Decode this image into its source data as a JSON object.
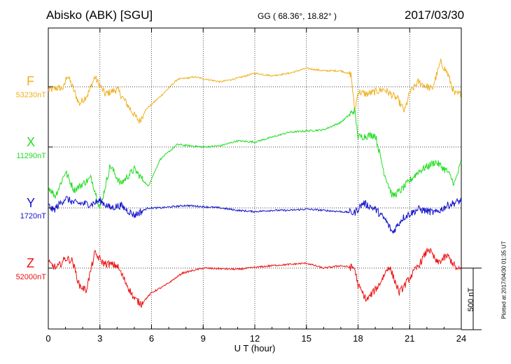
{
  "header": {
    "station": "Abisko (ABK)  [SGU]",
    "geo": "GG ( 68.36°,  18.82° )",
    "date": "2017/03/30"
  },
  "footer": {
    "plotted": "Plotted at 2017/04/30 01:35 UT",
    "scale_label": "500 nT"
  },
  "chart_data": {
    "type": "line",
    "xlabel": "U T (hour)",
    "xlim": [
      0,
      24
    ],
    "xticks": [
      0,
      3,
      6,
      9,
      12,
      15,
      18,
      21,
      24
    ],
    "ylabel": "",
    "scale_bar_nT": 500,
    "grid": true,
    "series": [
      {
        "name": "F",
        "baseline": "53230nT",
        "color": "#f0b020",
        "points": [
          [
            0,
            -30
          ],
          [
            0.5,
            -10
          ],
          [
            0.9,
            -10
          ],
          [
            1.1,
            100
          ],
          [
            1.4,
            0
          ],
          [
            1.8,
            -140
          ],
          [
            2.3,
            -60
          ],
          [
            2.7,
            80
          ],
          [
            3.3,
            -60
          ],
          [
            4.0,
            -20
          ],
          [
            5.0,
            -230
          ],
          [
            5.3,
            -280
          ],
          [
            5.7,
            -180
          ],
          [
            6.5,
            -80
          ],
          [
            7.5,
            60
          ],
          [
            8.5,
            80
          ],
          [
            10,
            40
          ],
          [
            11,
            70
          ],
          [
            12,
            110
          ],
          [
            13,
            90
          ],
          [
            14,
            110
          ],
          [
            15,
            150
          ],
          [
            16,
            130
          ],
          [
            17,
            130
          ],
          [
            17.6,
            100
          ],
          [
            17.8,
            -200
          ],
          [
            18.0,
            -40
          ],
          [
            18.5,
            -60
          ],
          [
            19.5,
            -20
          ],
          [
            20.3,
            -100
          ],
          [
            20.7,
            -200
          ],
          [
            21.0,
            -50
          ],
          [
            21.5,
            40
          ],
          [
            22.3,
            -20
          ],
          [
            22.8,
            200
          ],
          [
            23.2,
            110
          ],
          [
            23.6,
            -60
          ],
          [
            24,
            -60
          ]
        ]
      },
      {
        "name": "X",
        "baseline": "11290nT",
        "color": "#22dd22",
        "points": [
          [
            0,
            -320
          ],
          [
            0.4,
            -400
          ],
          [
            1.0,
            -200
          ],
          [
            1.5,
            -350
          ],
          [
            2.0,
            -300
          ],
          [
            2.5,
            -250
          ],
          [
            3.0,
            -500
          ],
          [
            3.6,
            -150
          ],
          [
            4.2,
            -300
          ],
          [
            5.0,
            -180
          ],
          [
            5.8,
            -320
          ],
          [
            6.5,
            -100
          ],
          [
            7.5,
            20
          ],
          [
            9,
            0
          ],
          [
            10,
            10
          ],
          [
            11,
            50
          ],
          [
            12,
            40
          ],
          [
            13,
            80
          ],
          [
            14,
            120
          ],
          [
            15,
            130
          ],
          [
            16,
            140
          ],
          [
            17,
            200
          ],
          [
            17.8,
            300
          ],
          [
            18.0,
            80
          ],
          [
            19.0,
            100
          ],
          [
            19.5,
            -200
          ],
          [
            20.0,
            -400
          ],
          [
            20.5,
            -350
          ],
          [
            21.5,
            -200
          ],
          [
            22.5,
            -120
          ],
          [
            23.2,
            -200
          ],
          [
            23.6,
            -300
          ],
          [
            24,
            -120
          ]
        ]
      },
      {
        "name": "Y",
        "baseline": "1720nT",
        "color": "#1111cc",
        "points": [
          [
            0,
            20
          ],
          [
            0.3,
            -20
          ],
          [
            1.0,
            80
          ],
          [
            1.5,
            40
          ],
          [
            2.5,
            30
          ],
          [
            3.0,
            60
          ],
          [
            3.6,
            0
          ],
          [
            4.2,
            20
          ],
          [
            5.0,
            -60
          ],
          [
            5.8,
            0
          ],
          [
            6.5,
            0
          ],
          [
            8.0,
            20
          ],
          [
            9.0,
            10
          ],
          [
            10.0,
            0
          ],
          [
            11.0,
            -20
          ],
          [
            12.0,
            -30
          ],
          [
            13.0,
            -20
          ],
          [
            14.0,
            -20
          ],
          [
            15.0,
            -10
          ],
          [
            16.0,
            -20
          ],
          [
            17.0,
            -30
          ],
          [
            17.8,
            -40
          ],
          [
            18.3,
            40
          ],
          [
            19.0,
            -10
          ],
          [
            19.6,
            -100
          ],
          [
            20.0,
            -200
          ],
          [
            20.6,
            -80
          ],
          [
            21.5,
            -10
          ],
          [
            22.5,
            -40
          ],
          [
            23.2,
            20
          ],
          [
            24,
            60
          ]
        ]
      },
      {
        "name": "Z",
        "baseline": "52000nT",
        "color": "#ee1111",
        "points": [
          [
            0,
            40
          ],
          [
            0.5,
            0
          ],
          [
            1.0,
            80
          ],
          [
            1.4,
            60
          ],
          [
            1.8,
            -140
          ],
          [
            2.2,
            -180
          ],
          [
            2.7,
            120
          ],
          [
            3.2,
            40
          ],
          [
            4.0,
            20
          ],
          [
            5.0,
            -250
          ],
          [
            5.4,
            -290
          ],
          [
            6.0,
            -200
          ],
          [
            6.8,
            -140
          ],
          [
            7.8,
            -40
          ],
          [
            9,
            0
          ],
          [
            11,
            -10
          ],
          [
            13,
            20
          ],
          [
            15,
            40
          ],
          [
            16,
            0
          ],
          [
            17,
            20
          ],
          [
            17.8,
            0
          ],
          [
            18.0,
            -140
          ],
          [
            18.5,
            -260
          ],
          [
            19.2,
            -140
          ],
          [
            19.8,
            20
          ],
          [
            20.4,
            -200
          ],
          [
            21.0,
            -80
          ],
          [
            21.6,
            40
          ],
          [
            22.1,
            160
          ],
          [
            22.6,
            40
          ],
          [
            23.2,
            100
          ],
          [
            23.8,
            -20
          ],
          [
            24,
            0
          ]
        ]
      }
    ]
  }
}
